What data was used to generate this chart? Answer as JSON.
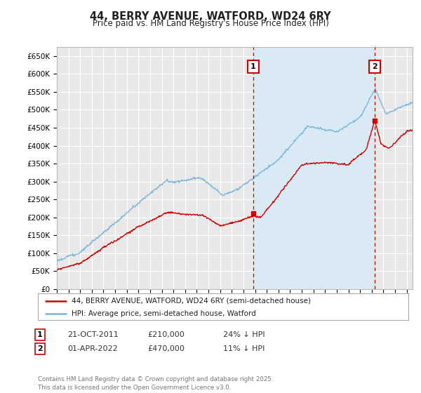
{
  "title": "44, BERRY AVENUE, WATFORD, WD24 6RY",
  "subtitle": "Price paid vs. HM Land Registry's House Price Index (HPI)",
  "ylim": [
    0,
    675000
  ],
  "yticks": [
    0,
    50000,
    100000,
    150000,
    200000,
    250000,
    300000,
    350000,
    400000,
    450000,
    500000,
    550000,
    600000,
    650000
  ],
  "ytick_labels": [
    "£0",
    "£50K",
    "£100K",
    "£150K",
    "£200K",
    "£250K",
    "£300K",
    "£350K",
    "£400K",
    "£450K",
    "£500K",
    "£550K",
    "£600K",
    "£650K"
  ],
  "hpi_color": "#7ab4d8",
  "price_color": "#cc0000",
  "shade_color": "#daeaf5",
  "marker1_date": 2011.83,
  "marker1_price": 210000,
  "marker2_date": 2022.25,
  "marker2_price": 470000,
  "legend_line1": "44, BERRY AVENUE, WATFORD, WD24 6RY (semi-detached house)",
  "legend_line2": "HPI: Average price, semi-detached house, Watford",
  "footer": "Contains HM Land Registry data © Crown copyright and database right 2025.\nThis data is licensed under the Open Government Licence v3.0.",
  "background_color": "#ffffff",
  "plot_bg_color": "#e8e8e8",
  "grid_color": "#ffffff",
  "vline_color": "#cc0000",
  "xlim_left": 1995.0,
  "xlim_right": 2025.5
}
